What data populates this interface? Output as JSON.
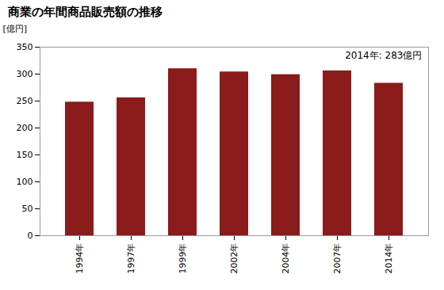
{
  "chart_data": {
    "type": "bar",
    "title": "商業の年間商品販売額の推移",
    "ylabel": "[億円]",
    "annotation": "2014年: 283億円",
    "categories": [
      "1994年",
      "1997年",
      "1999年",
      "2002年",
      "2004年",
      "2007年",
      "2014年"
    ],
    "values": [
      248,
      256,
      310,
      304,
      299,
      306,
      283
    ],
    "color": "#8B1A1A",
    "ylim": [
      0,
      350
    ],
    "yticks": [
      0,
      50,
      100,
      150,
      200,
      250,
      300,
      350
    ],
    "grid": false
  }
}
